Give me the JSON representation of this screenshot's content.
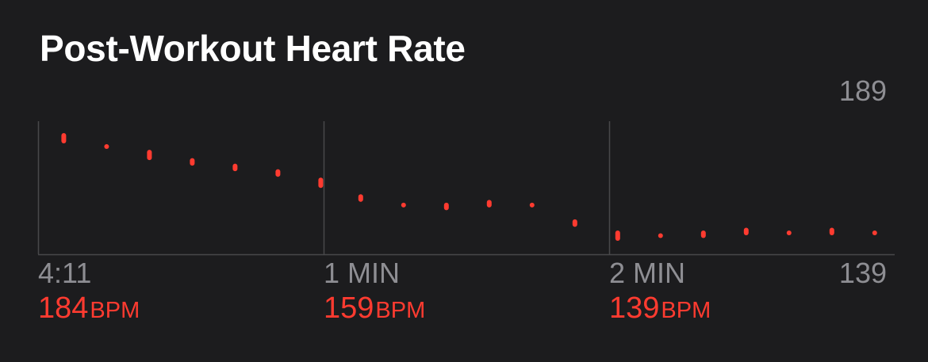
{
  "header": {
    "title": "Post-Workout Heart Rate"
  },
  "axis": {
    "max_label": "189",
    "min_label": "139"
  },
  "ticks": [
    {
      "label": "4:11",
      "value": "184",
      "unit": "BPM"
    },
    {
      "label": "1 MIN",
      "value": "159",
      "unit": "BPM"
    },
    {
      "label": "2 MIN",
      "value": "139",
      "unit": "BPM"
    }
  ],
  "colors": {
    "accent": "#ff3b30",
    "grid": "#48484a",
    "muted": "#8e8e93"
  },
  "chart_data": {
    "type": "scatter",
    "title": "Post-Workout Heart Rate",
    "xlabel": "",
    "ylabel": "",
    "unit": "BPM",
    "ylim": [
      139,
      189
    ],
    "xlim": [
      0,
      3
    ],
    "x_tick_labels": [
      "4:11",
      "1 MIN",
      "2 MIN"
    ],
    "grid": true,
    "series": [
      {
        "values": [
          {
            "x": 0.09,
            "low": 183,
            "high": 185
          },
          {
            "x": 0.24,
            "low": 181,
            "high": 181
          },
          {
            "x": 0.39,
            "low": 177,
            "high": 179
          },
          {
            "x": 0.54,
            "low": 175,
            "high": 176
          },
          {
            "x": 0.69,
            "low": 173,
            "high": 174
          },
          {
            "x": 0.84,
            "low": 171,
            "high": 172
          },
          {
            "x": 0.99,
            "low": 167,
            "high": 169
          },
          {
            "x": 1.13,
            "low": 162,
            "high": 163
          },
          {
            "x": 1.28,
            "low": 160,
            "high": 160
          },
          {
            "x": 1.43,
            "low": 159,
            "high": 160
          },
          {
            "x": 1.58,
            "low": 160,
            "high": 161
          },
          {
            "x": 1.73,
            "low": 160,
            "high": 160
          },
          {
            "x": 1.88,
            "low": 153,
            "high": 154
          },
          {
            "x": 2.03,
            "low": 148,
            "high": 150
          },
          {
            "x": 2.18,
            "low": 149,
            "high": 149
          },
          {
            "x": 2.33,
            "low": 149,
            "high": 150
          },
          {
            "x": 2.48,
            "low": 150,
            "high": 151
          },
          {
            "x": 2.63,
            "low": 150,
            "high": 150
          },
          {
            "x": 2.78,
            "low": 150,
            "high": 151
          },
          {
            "x": 2.93,
            "low": 150,
            "high": 150
          }
        ]
      }
    ]
  }
}
